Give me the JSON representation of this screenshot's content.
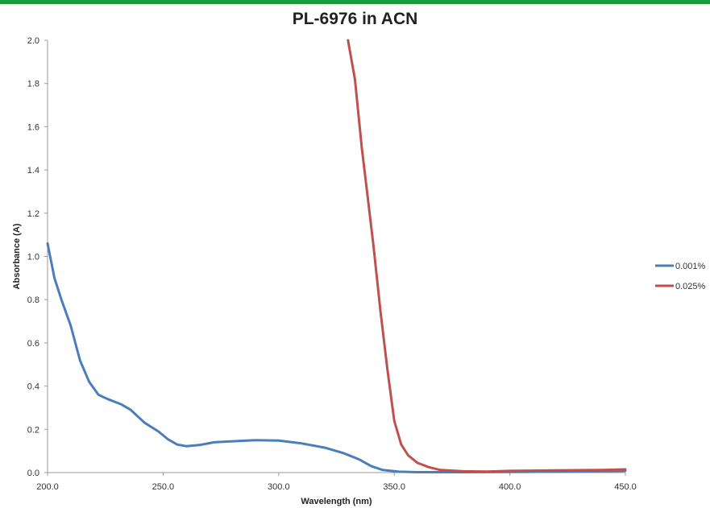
{
  "chart_data": {
    "type": "line",
    "title": "PL-6976 in ACN",
    "xlabel": "Wavelength (nm)",
    "ylabel": "Absorbance (A)",
    "xlim": [
      200,
      450
    ],
    "ylim": [
      0,
      2.0
    ],
    "x_ticks": [
      "200.0",
      "250.0",
      "300.0",
      "350.0",
      "400.0",
      "450.0"
    ],
    "y_ticks": [
      "0.0",
      "0.2",
      "0.4",
      "0.6",
      "0.8",
      "1.0",
      "1.2",
      "1.4",
      "1.6",
      "1.8",
      "2.0"
    ],
    "grid": false,
    "legend_position": "right",
    "series": [
      {
        "name": "0.001%",
        "color": "#4a7ebb",
        "points": [
          [
            200,
            1.06
          ],
          [
            203,
            0.9
          ],
          [
            206,
            0.8
          ],
          [
            210,
            0.68
          ],
          [
            214,
            0.52
          ],
          [
            218,
            0.42
          ],
          [
            222,
            0.36
          ],
          [
            226,
            0.34
          ],
          [
            232,
            0.315
          ],
          [
            236,
            0.29
          ],
          [
            242,
            0.23
          ],
          [
            248,
            0.19
          ],
          [
            252,
            0.155
          ],
          [
            256,
            0.13
          ],
          [
            260,
            0.122
          ],
          [
            266,
            0.128
          ],
          [
            272,
            0.14
          ],
          [
            280,
            0.145
          ],
          [
            290,
            0.15
          ],
          [
            300,
            0.148
          ],
          [
            310,
            0.135
          ],
          [
            320,
            0.115
          ],
          [
            328,
            0.09
          ],
          [
            335,
            0.06
          ],
          [
            340,
            0.03
          ],
          [
            345,
            0.012
          ],
          [
            352,
            0.004
          ],
          [
            360,
            0.002
          ],
          [
            380,
            0.002
          ],
          [
            400,
            0.003
          ],
          [
            420,
            0.004
          ],
          [
            440,
            0.006
          ],
          [
            450,
            0.008
          ]
        ]
      },
      {
        "name": "0.025%",
        "color": "#c0504d",
        "points": [
          [
            330,
            2.0
          ],
          [
            333,
            1.82
          ],
          [
            336,
            1.5
          ],
          [
            338,
            1.32
          ],
          [
            341,
            1.05
          ],
          [
            344,
            0.75
          ],
          [
            347,
            0.48
          ],
          [
            350,
            0.24
          ],
          [
            353,
            0.13
          ],
          [
            356,
            0.08
          ],
          [
            360,
            0.045
          ],
          [
            365,
            0.025
          ],
          [
            370,
            0.012
          ],
          [
            380,
            0.006
          ],
          [
            390,
            0.005
          ],
          [
            400,
            0.008
          ],
          [
            420,
            0.01
          ],
          [
            440,
            0.012
          ],
          [
            450,
            0.015
          ]
        ]
      }
    ]
  }
}
